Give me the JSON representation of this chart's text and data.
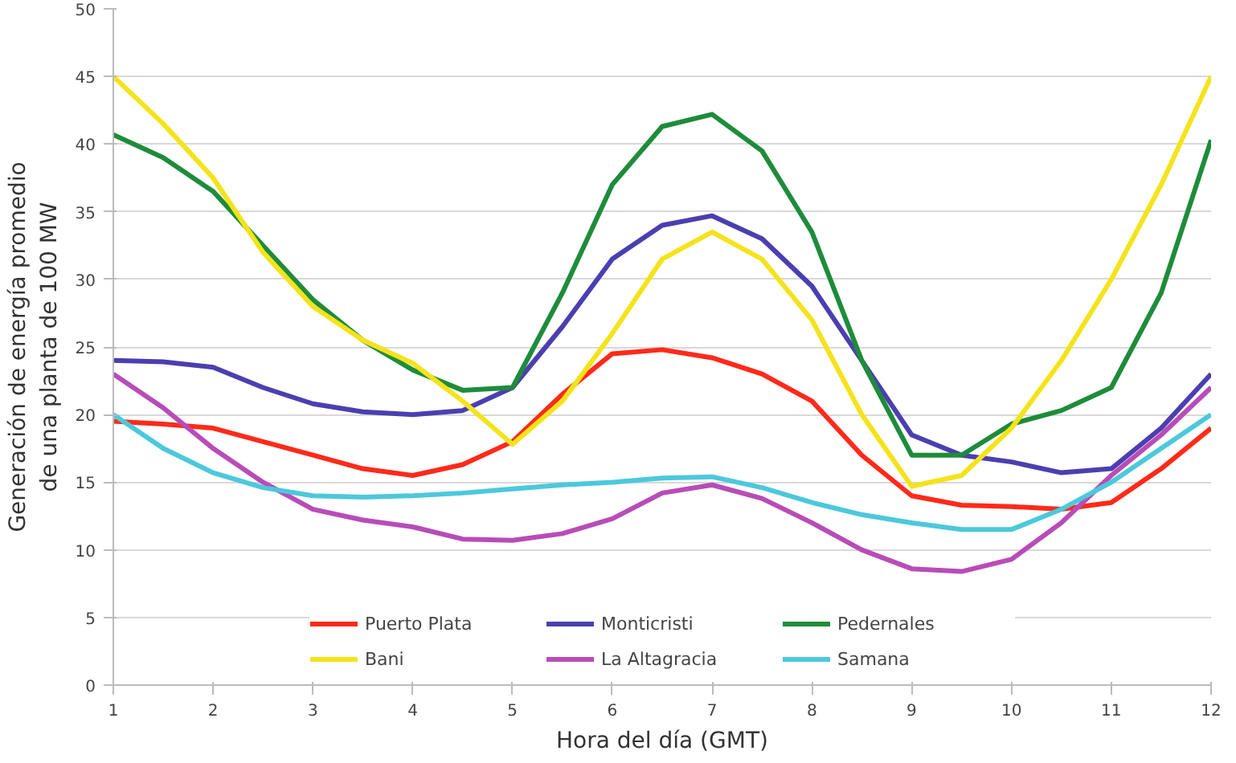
{
  "chart_data": {
    "type": "line",
    "xlabel": "Hora del día (GMT)",
    "ylabel": "Generación de energía promedio de una planta de 100 MW",
    "x": [
      1,
      1.5,
      2,
      2.5,
      3,
      3.5,
      4,
      4.5,
      5,
      5.5,
      6,
      6.5,
      7,
      7.5,
      8,
      8.5,
      9,
      9.5,
      10,
      10.5,
      11,
      11.5,
      12
    ],
    "series": [
      {
        "name": "Puerto Plata",
        "color": "#ff2a1a",
        "values": [
          19.5,
          19.3,
          19,
          18,
          17,
          16,
          15.5,
          16.3,
          18,
          21.5,
          24.5,
          24.8,
          24.2,
          23,
          21,
          17,
          14,
          13.3,
          13.2,
          13,
          13.5,
          16,
          19
        ]
      },
      {
        "name": "Monticristi",
        "color": "#4b3fb0",
        "values": [
          24,
          23.9,
          23.5,
          22,
          20.8,
          20.2,
          20,
          20.3,
          22,
          26.5,
          31.5,
          34,
          34.7,
          33,
          29.5,
          24,
          18.5,
          17,
          16.5,
          15.7,
          16,
          19,
          23
        ]
      },
      {
        "name": "Pedernales",
        "color": "#1e8c3a",
        "values": [
          40.7,
          39,
          36.5,
          32.5,
          28.5,
          25.5,
          23.3,
          21.8,
          22,
          29,
          37,
          41.3,
          42.2,
          39.5,
          33.5,
          24,
          17,
          17,
          19.3,
          20.3,
          22,
          29,
          40.3
        ]
      },
      {
        "name": "Bani",
        "color": "#f5e31a",
        "values": [
          45,
          41.5,
          37.5,
          32,
          28,
          25.5,
          23.8,
          21,
          17.8,
          21,
          26,
          31.5,
          33.5,
          31.5,
          27,
          20,
          14.7,
          15.5,
          19,
          24,
          30,
          37,
          45
        ]
      },
      {
        "name": "La Altagracia",
        "color": "#b84cb8",
        "values": [
          23,
          20.5,
          17.5,
          15,
          13,
          12.2,
          11.7,
          10.8,
          10.7,
          11.2,
          12.3,
          14.2,
          14.8,
          13.8,
          12,
          10,
          8.6,
          8.4,
          9.3,
          12,
          15.5,
          18.5,
          22
        ]
      },
      {
        "name": "Samana",
        "color": "#4cc8dc",
        "values": [
          20,
          17.5,
          15.7,
          14.6,
          14,
          13.9,
          14,
          14.2,
          14.5,
          14.8,
          15,
          15.3,
          15.4,
          14.6,
          13.5,
          12.6,
          12,
          11.5,
          11.5,
          13,
          15,
          17.5,
          20
        ]
      }
    ],
    "xlim": [
      1,
      12
    ],
    "xticks": [
      1,
      2,
      3,
      4,
      5,
      6,
      7,
      8,
      9,
      10,
      11,
      12
    ],
    "ylim": [
      0,
      50
    ],
    "yticks": [
      0,
      5,
      10,
      15,
      20,
      25,
      30,
      35,
      40,
      45,
      50
    ],
    "grid": "y",
    "legend": "bottom",
    "marker": "none",
    "line_style": "solid"
  }
}
